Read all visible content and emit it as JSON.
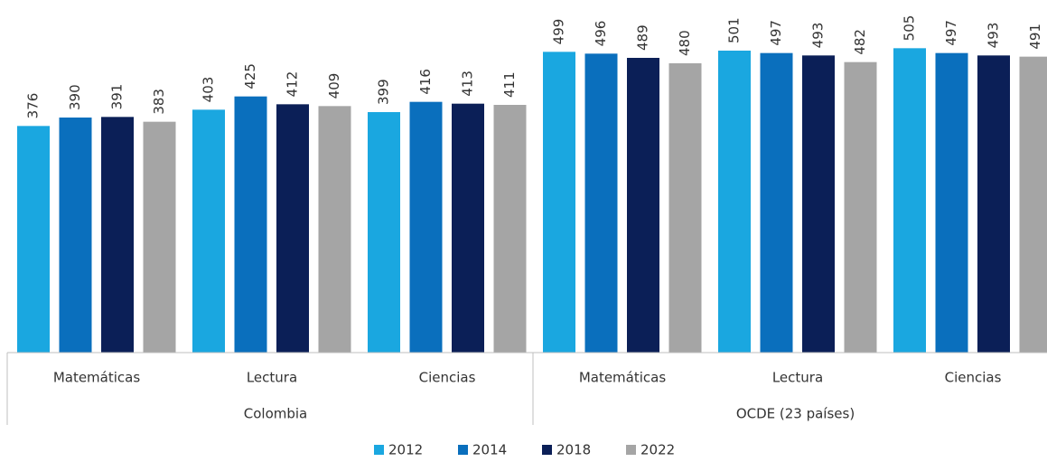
{
  "chart_data": {
    "type": "bar",
    "groups": [
      {
        "name": "Colombia",
        "categories": [
          "Matemáticas",
          "Lectura",
          "Ciencias"
        ]
      },
      {
        "name": "OCDE (23 países)",
        "categories": [
          "Matemáticas",
          "Lectura",
          "Ciencias"
        ]
      }
    ],
    "series": [
      {
        "name": "2012",
        "color": "#1aa7e0",
        "values": [
          376,
          403,
          399,
          499,
          501,
          505
        ]
      },
      {
        "name": "2014",
        "color": "#0a6fbd",
        "values": [
          390,
          425,
          416,
          496,
          497,
          497
        ]
      },
      {
        "name": "2018",
        "color": "#0b1f57",
        "values": [
          391,
          412,
          413,
          489,
          493,
          493
        ]
      },
      {
        "name": "2022",
        "color": "#a5a5a5",
        "values": [
          383,
          409,
          411,
          480,
          482,
          491
        ]
      }
    ],
    "ylim": [
      0,
      585
    ],
    "legend": "bottom"
  }
}
